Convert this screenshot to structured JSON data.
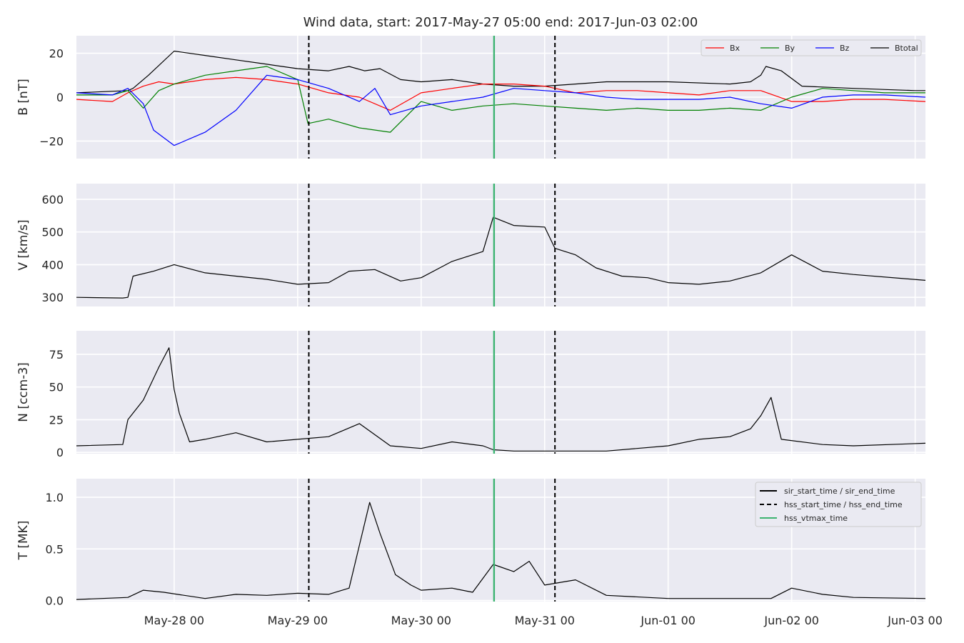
{
  "title": "Wind data, start: 2017-May-27 05:00  end: 2017-Jun-03 02:00",
  "colors": {
    "panel_bg": "#eaeaf2",
    "grid": "#ffffff",
    "bx": "#ff0000",
    "by": "#008000",
    "bz": "#0000ff",
    "btotal": "#000000",
    "vtmax": "#3cb371"
  },
  "chart_data": {
    "type": "line",
    "x_axis": {
      "range": [
        "2017-05-27T05:00",
        "2017-06-03T02:00"
      ],
      "ticks": [
        {
          "t": "2017-05-28T00:00",
          "label": "May-28 00"
        },
        {
          "t": "2017-05-29T00:00",
          "label": "May-29 00"
        },
        {
          "t": "2017-05-30T00:00",
          "label": "May-30 00"
        },
        {
          "t": "2017-05-31T00:00",
          "label": "May-31 00"
        },
        {
          "t": "2017-06-01T00:00",
          "label": "Jun-01 00"
        },
        {
          "t": "2017-06-02T00:00",
          "label": "Jun-02 00"
        },
        {
          "t": "2017-06-03T00:00",
          "label": "Jun-03 00"
        }
      ]
    },
    "markers": {
      "hss_start_time": "2017-05-29T02:10",
      "hss_vtmax_time": "2017-05-30T14:10",
      "hss_end_time": "2017-05-31T02:00"
    },
    "legend_top": {
      "placement": "top-right",
      "entries": [
        "Bx",
        "By",
        "Bz",
        "Btotal"
      ]
    },
    "legend_bottom": {
      "placement": "top-right",
      "entries": [
        "sir_start_time / sir_end_time",
        "hss_start_time / hss_end_time",
        "hss_vtmax_time"
      ]
    },
    "panels": [
      {
        "id": "B",
        "ylabel": "B [nT]",
        "ylim": [
          -28,
          28
        ],
        "yticks": [
          {
            "v": 20,
            "label": "20"
          },
          {
            "v": 0,
            "label": "0"
          },
          {
            "v": -20,
            "label": "−20"
          }
        ],
        "series": [
          {
            "name": "Btotal",
            "x": [
              "2017-05-27T05:00",
              "2017-05-27T15:00",
              "2017-05-27T16:00",
              "2017-05-27T18:00",
              "2017-05-27T19:00",
              "2017-05-28T00:00",
              "2017-05-28T06:00",
              "2017-05-28T12:00",
              "2017-05-28T18:00",
              "2017-05-29T00:00",
              "2017-05-29T06:00",
              "2017-05-29T10:00",
              "2017-05-29T13:00",
              "2017-05-29T16:00",
              "2017-05-29T20:00",
              "2017-05-30T00:00",
              "2017-05-30T06:00",
              "2017-05-30T12:00",
              "2017-05-30T18:00",
              "2017-05-31T00:00",
              "2017-05-31T06:00",
              "2017-05-31T12:00",
              "2017-06-01T00:00",
              "2017-06-01T12:00",
              "2017-06-01T16:00",
              "2017-06-01T18:00",
              "2017-06-01T19:00",
              "2017-06-01T22:00",
              "2017-06-02T02:00",
              "2017-06-02T12:00",
              "2017-06-03T00:00",
              "2017-06-03T02:00"
            ],
            "y": [
              2,
              3,
              4,
              8,
              10,
              21,
              19,
              17,
              15,
              13,
              12,
              14,
              12,
              13,
              8,
              7,
              8,
              6,
              5,
              5,
              6,
              7,
              7,
              6,
              7,
              10,
              14,
              12,
              5,
              4,
              3,
              3
            ]
          },
          {
            "name": "Bx",
            "x": [
              "2017-05-27T05:00",
              "2017-05-27T12:00",
              "2017-05-27T15:00",
              "2017-05-27T18:00",
              "2017-05-27T21:00",
              "2017-05-28T00:00",
              "2017-05-28T06:00",
              "2017-05-28T12:00",
              "2017-05-28T18:00",
              "2017-05-29T00:00",
              "2017-05-29T06:00",
              "2017-05-29T12:00",
              "2017-05-29T18:00",
              "2017-05-30T00:00",
              "2017-05-30T06:00",
              "2017-05-30T12:00",
              "2017-05-30T18:00",
              "2017-05-31T00:00",
              "2017-05-31T06:00",
              "2017-05-31T12:00",
              "2017-05-31T18:00",
              "2017-06-01T00:00",
              "2017-06-01T06:00",
              "2017-06-01T12:00",
              "2017-06-01T18:00",
              "2017-06-02T00:00",
              "2017-06-02T06:00",
              "2017-06-02T12:00",
              "2017-06-02T18:00",
              "2017-06-03T02:00"
            ],
            "y": [
              -1,
              -2,
              2,
              5,
              7,
              6,
              8,
              9,
              8,
              6,
              2,
              0,
              -6,
              2,
              4,
              6,
              6,
              5,
              2,
              3,
              3,
              2,
              1,
              3,
              3,
              -2,
              -2,
              -1,
              -1,
              -2
            ]
          },
          {
            "name": "By",
            "x": [
              "2017-05-27T05:00",
              "2017-05-27T12:00",
              "2017-05-27T15:00",
              "2017-05-27T18:00",
              "2017-05-27T21:00",
              "2017-05-28T00:00",
              "2017-05-28T06:00",
              "2017-05-28T12:00",
              "2017-05-28T18:00",
              "2017-05-29T00:00",
              "2017-05-29T02:00",
              "2017-05-29T06:00",
              "2017-05-29T12:00",
              "2017-05-29T18:00",
              "2017-05-30T00:00",
              "2017-05-30T06:00",
              "2017-05-30T12:00",
              "2017-05-30T18:00",
              "2017-05-31T00:00",
              "2017-05-31T06:00",
              "2017-05-31T12:00",
              "2017-05-31T18:00",
              "2017-06-01T00:00",
              "2017-06-01T06:00",
              "2017-06-01T12:00",
              "2017-06-01T18:00",
              "2017-06-02T00:00",
              "2017-06-02T06:00",
              "2017-06-02T12:00",
              "2017-06-02T18:00",
              "2017-06-03T02:00"
            ],
            "y": [
              1,
              1,
              3,
              -5,
              3,
              6,
              10,
              12,
              14,
              8,
              -12,
              -10,
              -14,
              -16,
              -2,
              -6,
              -4,
              -3,
              -4,
              -5,
              -6,
              -5,
              -6,
              -6,
              -5,
              -6,
              0,
              4,
              3,
              2,
              2
            ]
          },
          {
            "name": "Bz",
            "x": [
              "2017-05-27T05:00",
              "2017-05-27T12:00",
              "2017-05-27T15:00",
              "2017-05-27T18:00",
              "2017-05-27T20:00",
              "2017-05-28T00:00",
              "2017-05-28T06:00",
              "2017-05-28T12:00",
              "2017-05-28T18:00",
              "2017-05-29T00:00",
              "2017-05-29T06:00",
              "2017-05-29T12:00",
              "2017-05-29T15:00",
              "2017-05-29T18:00",
              "2017-05-30T00:00",
              "2017-05-30T06:00",
              "2017-05-30T12:00",
              "2017-05-30T18:00",
              "2017-05-31T00:00",
              "2017-05-31T06:00",
              "2017-05-31T12:00",
              "2017-05-31T18:00",
              "2017-06-01T00:00",
              "2017-06-01T06:00",
              "2017-06-01T12:00",
              "2017-06-01T18:00",
              "2017-06-02T00:00",
              "2017-06-02T06:00",
              "2017-06-02T12:00",
              "2017-06-02T18:00",
              "2017-06-03T02:00"
            ],
            "y": [
              2,
              1,
              4,
              -3,
              -15,
              -22,
              -16,
              -6,
              10,
              8,
              4,
              -2,
              4,
              -8,
              -4,
              -2,
              0,
              4,
              3,
              2,
              0,
              -1,
              -1,
              -1,
              0,
              -3,
              -5,
              0,
              1,
              1,
              0
            ]
          }
        ]
      },
      {
        "id": "V",
        "ylabel": "V [km/s]",
        "ylim": [
          272,
          648
        ],
        "yticks": [
          {
            "v": 600,
            "label": "600"
          },
          {
            "v": 500,
            "label": "500"
          },
          {
            "v": 400,
            "label": "400"
          },
          {
            "v": 300,
            "label": "300"
          }
        ],
        "series": [
          {
            "name": "V",
            "x": [
              "2017-05-27T05:00",
              "2017-05-27T14:00",
              "2017-05-27T15:00",
              "2017-05-27T16:00",
              "2017-05-27T20:00",
              "2017-05-28T00:00",
              "2017-05-28T06:00",
              "2017-05-28T12:00",
              "2017-05-28T18:00",
              "2017-05-29T00:00",
              "2017-05-29T06:00",
              "2017-05-29T10:00",
              "2017-05-29T15:00",
              "2017-05-29T20:00",
              "2017-05-30T00:00",
              "2017-05-30T06:00",
              "2017-05-30T12:00",
              "2017-05-30T14:00",
              "2017-05-30T18:00",
              "2017-05-31T00:00",
              "2017-05-31T02:00",
              "2017-05-31T06:00",
              "2017-05-31T10:00",
              "2017-05-31T15:00",
              "2017-05-31T20:00",
              "2017-06-01T00:00",
              "2017-06-01T06:00",
              "2017-06-01T12:00",
              "2017-06-01T18:00",
              "2017-06-02T00:00",
              "2017-06-02T06:00",
              "2017-06-02T12:00",
              "2017-06-03T02:00"
            ],
            "y": [
              300,
              298,
              300,
              365,
              380,
              400,
              375,
              365,
              355,
              340,
              345,
              380,
              385,
              350,
              360,
              410,
              440,
              545,
              520,
              515,
              450,
              430,
              390,
              365,
              360,
              345,
              340,
              350,
              375,
              430,
              380,
              370,
              352
            ]
          }
        ]
      },
      {
        "id": "N",
        "ylabel": "N [ccm-3]",
        "ylim": [
          -1,
          93
        ],
        "yticks": [
          {
            "v": 75,
            "label": "75"
          },
          {
            "v": 50,
            "label": "50"
          },
          {
            "v": 25,
            "label": "25"
          },
          {
            "v": 0,
            "label": "0"
          }
        ],
        "series": [
          {
            "name": "N",
            "x": [
              "2017-05-27T05:00",
              "2017-05-27T14:00",
              "2017-05-27T15:00",
              "2017-05-27T18:00",
              "2017-05-27T21:00",
              "2017-05-27T23:00",
              "2017-05-28T00:00",
              "2017-05-28T01:00",
              "2017-05-28T03:00",
              "2017-05-28T06:00",
              "2017-05-28T12:00",
              "2017-05-28T18:00",
              "2017-05-29T00:00",
              "2017-05-29T06:00",
              "2017-05-29T12:00",
              "2017-05-29T18:00",
              "2017-05-30T00:00",
              "2017-05-30T06:00",
              "2017-05-30T12:00",
              "2017-05-30T14:00",
              "2017-05-30T18:00",
              "2017-05-31T00:00",
              "2017-05-31T06:00",
              "2017-05-31T12:00",
              "2017-06-01T00:00",
              "2017-06-01T06:00",
              "2017-06-01T12:00",
              "2017-06-01T16:00",
              "2017-06-01T18:00",
              "2017-06-01T20:00",
              "2017-06-01T22:00",
              "2017-06-02T06:00",
              "2017-06-02T12:00",
              "2017-06-03T02:00"
            ],
            "y": [
              5,
              6,
              25,
              40,
              65,
              80,
              48,
              30,
              8,
              10,
              15,
              8,
              10,
              12,
              22,
              5,
              3,
              8,
              5,
              2,
              1,
              1,
              1,
              1,
              5,
              10,
              12,
              18,
              28,
              42,
              10,
              6,
              5,
              7
            ]
          }
        ]
      },
      {
        "id": "T",
        "ylabel": "T [MK]",
        "ylim": [
          -0.01,
          1.18
        ],
        "yticks": [
          {
            "v": 1.0,
            "label": "1.0"
          },
          {
            "v": 0.5,
            "label": "0.5"
          },
          {
            "v": 0.0,
            "label": "0.0"
          }
        ],
        "series": [
          {
            "name": "T",
            "x": [
              "2017-05-27T05:00",
              "2017-05-27T15:00",
              "2017-05-27T18:00",
              "2017-05-27T22:00",
              "2017-05-28T06:00",
              "2017-05-28T12:00",
              "2017-05-28T18:00",
              "2017-05-29T00:00",
              "2017-05-29T06:00",
              "2017-05-29T10:00",
              "2017-05-29T14:00",
              "2017-05-29T16:00",
              "2017-05-29T19:00",
              "2017-05-29T22:00",
              "2017-05-30T00:00",
              "2017-05-30T06:00",
              "2017-05-30T10:00",
              "2017-05-30T14:00",
              "2017-05-30T18:00",
              "2017-05-30T21:00",
              "2017-05-31T00:00",
              "2017-05-31T06:00",
              "2017-05-31T12:00",
              "2017-06-01T00:00",
              "2017-06-01T12:00",
              "2017-06-01T20:00",
              "2017-06-02T00:00",
              "2017-06-02T06:00",
              "2017-06-02T12:00",
              "2017-06-03T02:00"
            ],
            "y": [
              0.01,
              0.03,
              0.1,
              0.08,
              0.02,
              0.06,
              0.05,
              0.07,
              0.06,
              0.12,
              0.95,
              0.65,
              0.25,
              0.15,
              0.1,
              0.12,
              0.08,
              0.35,
              0.28,
              0.38,
              0.15,
              0.2,
              0.05,
              0.02,
              0.02,
              0.02,
              0.12,
              0.06,
              0.03,
              0.02
            ]
          }
        ]
      }
    ]
  }
}
